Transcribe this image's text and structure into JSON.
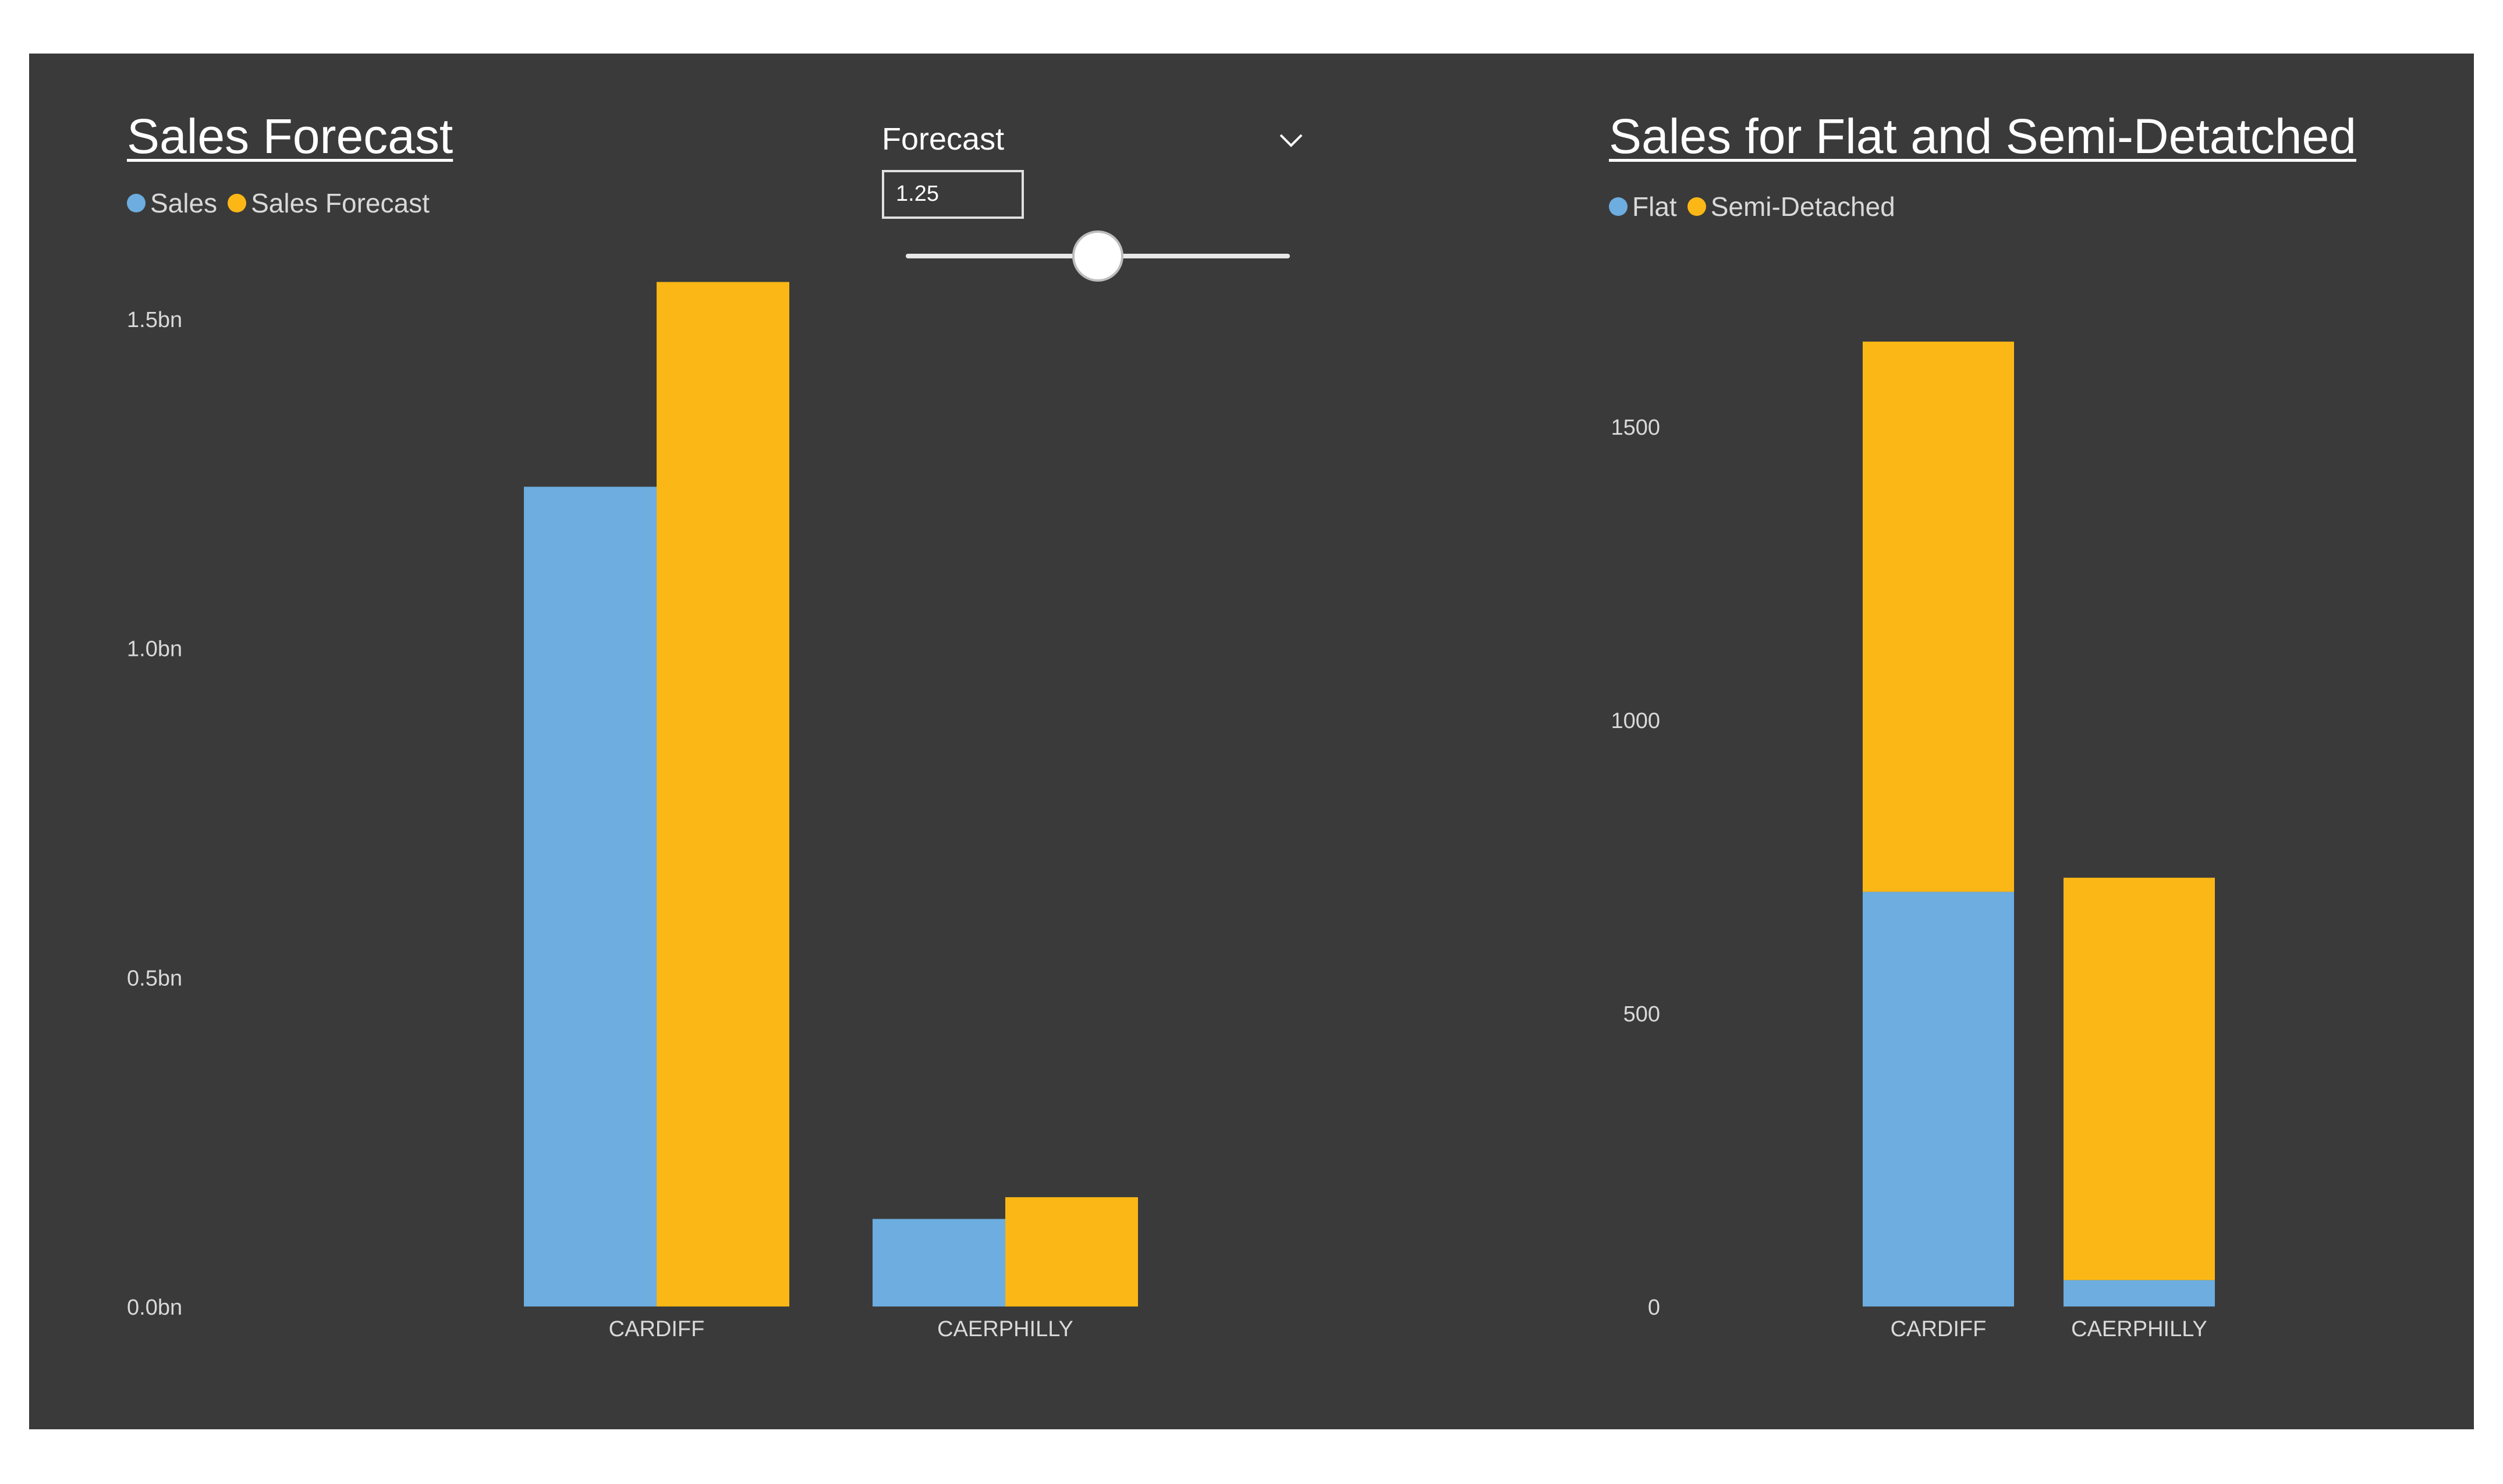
{
  "colors": {
    "background": "#3a3a3a",
    "sales": "#6daddf",
    "forecast": "#fbb715",
    "flat": "#6daddf",
    "semi": "#fbb715",
    "text": "#d9d9d9"
  },
  "left_chart": {
    "title": "Sales Forecast",
    "legend": [
      "Sales",
      "Sales Forecast"
    ]
  },
  "slicer": {
    "title": "Forecast",
    "value": "1.25",
    "dropdown_icon": "chevron-down-icon",
    "slider_fraction": 0.5
  },
  "right_chart": {
    "title": "Sales for Flat and Semi-Detatched",
    "legend": [
      "Flat",
      "Semi-Detached"
    ]
  },
  "chart_data": [
    {
      "type": "bar",
      "title": "Sales Forecast",
      "categories": [
        "CARDIFF",
        "CAERPHILLY"
      ],
      "series": [
        {
          "name": "Sales",
          "values": [
            1.245,
            0.133
          ]
        },
        {
          "name": "Sales Forecast",
          "values": [
            1.556,
            0.166
          ]
        }
      ],
      "yticks": [
        "0.0bn",
        "0.5bn",
        "1.0bn",
        "1.5bn"
      ],
      "ytick_values": [
        0,
        0.5,
        1.0,
        1.5
      ],
      "ylim": [
        0,
        1.56
      ],
      "unit": "bn",
      "xlabel": "",
      "ylabel": "",
      "legend": "top-left",
      "grid": false
    },
    {
      "type": "bar",
      "stacked": true,
      "title": "Sales for Flat and Semi-Detatched",
      "categories": [
        "CARDIFF",
        "CAERPHILLY"
      ],
      "series": [
        {
          "name": "Flat",
          "values": [
            707,
            45
          ]
        },
        {
          "name": "Semi-Detached",
          "values": [
            938,
            686
          ]
        }
      ],
      "yticks": [
        "0",
        "500",
        "1000",
        "1500"
      ],
      "ytick_values": [
        0,
        500,
        1000,
        1500
      ],
      "ylim": [
        0,
        1645
      ],
      "xlabel": "",
      "ylabel": "",
      "legend": "top-left",
      "grid": false
    }
  ]
}
